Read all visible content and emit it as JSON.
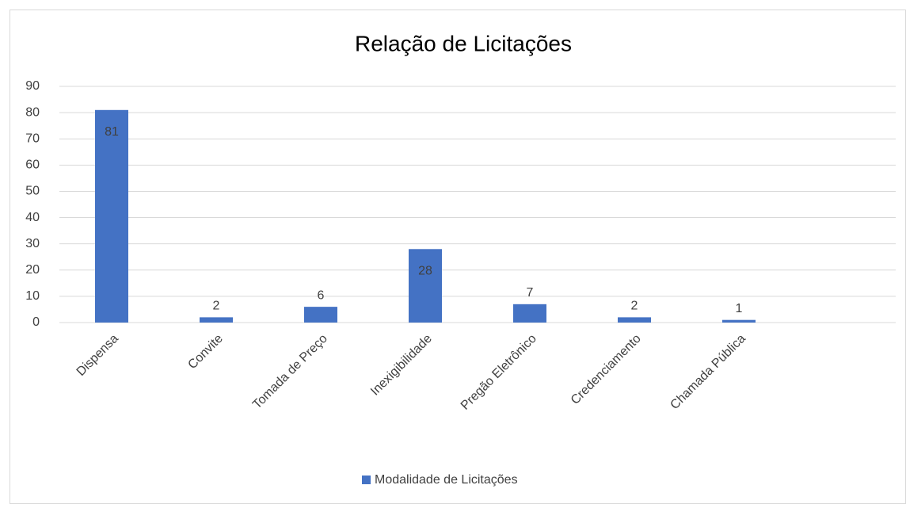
{
  "chart_data": {
    "type": "bar",
    "title": "Relação de Licitações",
    "categories": [
      "Dispensa",
      "Convite",
      "Tomada de Preço",
      "Inexigibilidade",
      "Pregão Eletrônico",
      "Credenciamento",
      "Chamada Pública",
      null
    ],
    "series": [
      {
        "name": "Modalidade de Licitações",
        "color": "#4472c4",
        "values": [
          81,
          2,
          6,
          28,
          7,
          2,
          1,
          null
        ]
      }
    ],
    "ylim": [
      0,
      90
    ],
    "yticks": [
      0,
      10,
      20,
      30,
      40,
      50,
      60,
      70,
      80,
      90
    ],
    "grid": true,
    "legend": "bottom"
  }
}
